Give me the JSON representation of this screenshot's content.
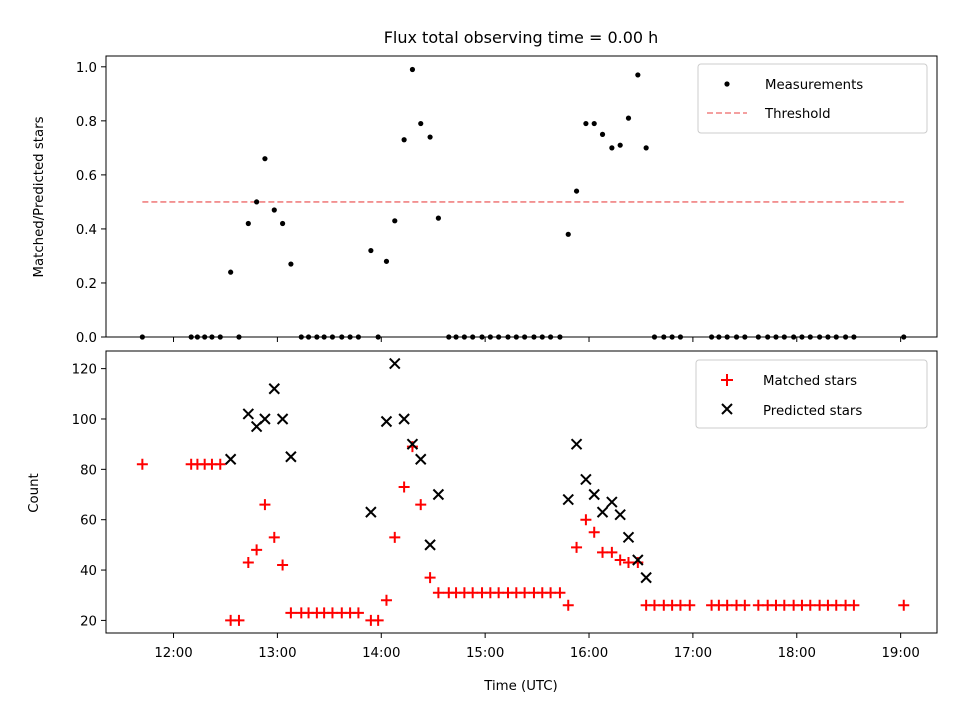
{
  "chart_data": [
    {
      "type": "scatter",
      "title": "Flux total observing time = 0.00 h",
      "xlabel": "",
      "ylabel": "Matched/Predicted stars",
      "xlim": [
        11.35,
        19.35
      ],
      "ylim": [
        0.0,
        1.04
      ],
      "yticks": [
        0.0,
        0.2,
        0.4,
        0.6,
        0.8,
        1.0
      ],
      "ytick_labels": [
        "0.0",
        "0.2",
        "0.4",
        "0.6",
        "0.8",
        "1.0"
      ],
      "legend": {
        "placement": "top-right",
        "entries": [
          "Measurements",
          "Threshold"
        ]
      },
      "threshold": {
        "name": "Threshold",
        "value": 0.5,
        "x_range": [
          11.7,
          19.03
        ],
        "color": "#f08080"
      },
      "series": [
        {
          "name": "Measurements",
          "color": "#000000",
          "points": [
            [
              11.7,
              0.0
            ],
            [
              12.17,
              0.0
            ],
            [
              12.23,
              0.0
            ],
            [
              12.3,
              0.0
            ],
            [
              12.37,
              0.0
            ],
            [
              12.45,
              0.0
            ],
            [
              12.55,
              0.24
            ],
            [
              12.63,
              0.0
            ],
            [
              12.72,
              0.42
            ],
            [
              12.8,
              0.5
            ],
            [
              12.88,
              0.66
            ],
            [
              12.97,
              0.47
            ],
            [
              13.05,
              0.42
            ],
            [
              13.13,
              0.27
            ],
            [
              13.23,
              0.0
            ],
            [
              13.3,
              0.0
            ],
            [
              13.38,
              0.0
            ],
            [
              13.45,
              0.0
            ],
            [
              13.53,
              0.0
            ],
            [
              13.62,
              0.0
            ],
            [
              13.7,
              0.0
            ],
            [
              13.78,
              0.0
            ],
            [
              13.9,
              0.32
            ],
            [
              13.97,
              0.0
            ],
            [
              14.05,
              0.28
            ],
            [
              14.13,
              0.43
            ],
            [
              14.22,
              0.73
            ],
            [
              14.3,
              0.99
            ],
            [
              14.38,
              0.79
            ],
            [
              14.47,
              0.74
            ],
            [
              14.55,
              0.44
            ],
            [
              14.65,
              0.0
            ],
            [
              14.72,
              0.0
            ],
            [
              14.8,
              0.0
            ],
            [
              14.88,
              0.0
            ],
            [
              14.97,
              0.0
            ],
            [
              15.05,
              0.0
            ],
            [
              15.13,
              0.0
            ],
            [
              15.22,
              0.0
            ],
            [
              15.3,
              0.0
            ],
            [
              15.38,
              0.0
            ],
            [
              15.47,
              0.0
            ],
            [
              15.55,
              0.0
            ],
            [
              15.63,
              0.0
            ],
            [
              15.72,
              0.0
            ],
            [
              15.8,
              0.38
            ],
            [
              15.88,
              0.54
            ],
            [
              15.97,
              0.79
            ],
            [
              16.05,
              0.79
            ],
            [
              16.13,
              0.75
            ],
            [
              16.22,
              0.7
            ],
            [
              16.3,
              0.71
            ],
            [
              16.38,
              0.81
            ],
            [
              16.47,
              0.97
            ],
            [
              16.55,
              0.7
            ],
            [
              16.63,
              0.0
            ],
            [
              16.72,
              0.0
            ],
            [
              16.8,
              0.0
            ],
            [
              16.88,
              0.0
            ],
            [
              17.18,
              0.0
            ],
            [
              17.25,
              0.0
            ],
            [
              17.33,
              0.0
            ],
            [
              17.42,
              0.0
            ],
            [
              17.5,
              0.0
            ],
            [
              17.63,
              0.0
            ],
            [
              17.72,
              0.0
            ],
            [
              17.8,
              0.0
            ],
            [
              17.88,
              0.0
            ],
            [
              17.97,
              0.0
            ],
            [
              18.05,
              0.0
            ],
            [
              18.13,
              0.0
            ],
            [
              18.22,
              0.0
            ],
            [
              18.3,
              0.0
            ],
            [
              18.38,
              0.0
            ],
            [
              18.47,
              0.0
            ],
            [
              18.55,
              0.0
            ],
            [
              19.03,
              0.0
            ]
          ]
        }
      ]
    },
    {
      "type": "scatter",
      "title": "",
      "xlabel": "Time (UTC)",
      "ylabel": "Count",
      "xlim": [
        11.35,
        19.35
      ],
      "ylim": [
        15,
        127
      ],
      "yticks": [
        20,
        40,
        60,
        80,
        100,
        120
      ],
      "ytick_labels": [
        "20",
        "40",
        "60",
        "80",
        "100",
        "120"
      ],
      "xticks": [
        12,
        13,
        14,
        15,
        16,
        17,
        18,
        19
      ],
      "xtick_labels": [
        "12:00",
        "13:00",
        "14:00",
        "15:00",
        "16:00",
        "17:00",
        "18:00",
        "19:00"
      ],
      "legend": {
        "placement": "top-right",
        "entries": [
          "Matched stars",
          "Predicted stars"
        ]
      },
      "series": [
        {
          "name": "Matched stars",
          "color": "#ff0000",
          "marker": "+",
          "points": [
            [
              11.7,
              82
            ],
            [
              12.17,
              82
            ],
            [
              12.23,
              82
            ],
            [
              12.3,
              82
            ],
            [
              12.37,
              82
            ],
            [
              12.45,
              82
            ],
            [
              12.55,
              20
            ],
            [
              12.63,
              20
            ],
            [
              12.72,
              43
            ],
            [
              12.8,
              48
            ],
            [
              12.88,
              66
            ],
            [
              12.97,
              53
            ],
            [
              13.05,
              42
            ],
            [
              13.13,
              23
            ],
            [
              13.23,
              23
            ],
            [
              13.3,
              23
            ],
            [
              13.38,
              23
            ],
            [
              13.45,
              23
            ],
            [
              13.53,
              23
            ],
            [
              13.62,
              23
            ],
            [
              13.7,
              23
            ],
            [
              13.78,
              23
            ],
            [
              13.9,
              20
            ],
            [
              13.97,
              20
            ],
            [
              14.05,
              28
            ],
            [
              14.13,
              53
            ],
            [
              14.22,
              73
            ],
            [
              14.3,
              89
            ],
            [
              14.38,
              66
            ],
            [
              14.47,
              37
            ],
            [
              14.55,
              31
            ],
            [
              14.65,
              31
            ],
            [
              14.72,
              31
            ],
            [
              14.8,
              31
            ],
            [
              14.88,
              31
            ],
            [
              14.97,
              31
            ],
            [
              15.05,
              31
            ],
            [
              15.13,
              31
            ],
            [
              15.22,
              31
            ],
            [
              15.3,
              31
            ],
            [
              15.38,
              31
            ],
            [
              15.47,
              31
            ],
            [
              15.55,
              31
            ],
            [
              15.63,
              31
            ],
            [
              15.72,
              31
            ],
            [
              15.8,
              26
            ],
            [
              15.88,
              49
            ],
            [
              15.97,
              60
            ],
            [
              16.05,
              55
            ],
            [
              16.13,
              47
            ],
            [
              16.22,
              47
            ],
            [
              16.3,
              44
            ],
            [
              16.38,
              43
            ],
            [
              16.47,
              43
            ],
            [
              16.55,
              26
            ],
            [
              16.63,
              26
            ],
            [
              16.72,
              26
            ],
            [
              16.8,
              26
            ],
            [
              16.88,
              26
            ],
            [
              16.97,
              26
            ],
            [
              17.18,
              26
            ],
            [
              17.25,
              26
            ],
            [
              17.33,
              26
            ],
            [
              17.42,
              26
            ],
            [
              17.5,
              26
            ],
            [
              17.63,
              26
            ],
            [
              17.72,
              26
            ],
            [
              17.8,
              26
            ],
            [
              17.88,
              26
            ],
            [
              17.97,
              26
            ],
            [
              18.05,
              26
            ],
            [
              18.13,
              26
            ],
            [
              18.22,
              26
            ],
            [
              18.3,
              26
            ],
            [
              18.38,
              26
            ],
            [
              18.47,
              26
            ],
            [
              18.55,
              26
            ],
            [
              19.03,
              26
            ]
          ]
        },
        {
          "name": "Predicted stars",
          "color": "#000000",
          "marker": "x",
          "points": [
            [
              12.55,
              84
            ],
            [
              12.72,
              102
            ],
            [
              12.8,
              97
            ],
            [
              12.88,
              100
            ],
            [
              12.97,
              112
            ],
            [
              13.05,
              100
            ],
            [
              13.13,
              85
            ],
            [
              13.9,
              63
            ],
            [
              14.05,
              99
            ],
            [
              14.13,
              122
            ],
            [
              14.22,
              100
            ],
            [
              14.3,
              90
            ],
            [
              14.38,
              84
            ],
            [
              14.47,
              50
            ],
            [
              14.55,
              70
            ],
            [
              15.8,
              68
            ],
            [
              15.88,
              90
            ],
            [
              15.97,
              76
            ],
            [
              16.05,
              70
            ],
            [
              16.13,
              63
            ],
            [
              16.22,
              67
            ],
            [
              16.3,
              62
            ],
            [
              16.38,
              53
            ],
            [
              16.47,
              44
            ],
            [
              16.55,
              37
            ]
          ]
        }
      ]
    }
  ]
}
